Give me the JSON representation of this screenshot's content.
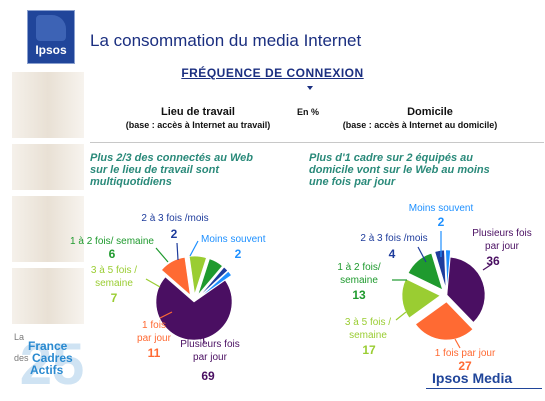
{
  "header": {
    "logo_text": "Ipsos",
    "title": "La consommation du media Internet"
  },
  "section": {
    "title": "FRÉQUENCE DE CONNEXION",
    "unit_label": "En %"
  },
  "columns": [
    {
      "heading": "Lieu de travail",
      "base": "(base : accès à Internet au travail)",
      "note": [
        "Plus 2/3 des connectés au Web",
        "sur le lieu de travail sont",
        "multiquotidiens"
      ]
    },
    {
      "heading": "Domicile",
      "base": "(base : accès à Internet au domicile)",
      "note": [
        "Plus d'1 cadre sur 2 équipés au",
        "domicile vont sur le Web au moins",
        "une fois par jour"
      ]
    }
  ],
  "footer": {
    "brand": "Ipsos Media",
    "side_logo": [
      "La",
      "France",
      "des",
      "Cadres",
      "Actifs"
    ]
  },
  "chart_data": [
    {
      "type": "pie",
      "title": "Lieu de travail",
      "slices": [
        {
          "label": [
            "Plusieurs fois",
            "par jour"
          ],
          "value": 69,
          "color": "#4a0f62"
        },
        {
          "label": [
            "1 fois",
            "par jour"
          ],
          "value": 11,
          "color": "#ff6a33"
        },
        {
          "label": [
            "3 à 5 fois /",
            "semaine"
          ],
          "value": 7,
          "color": "#9acd32"
        },
        {
          "label": [
            "1 à 2 fois/ semaine"
          ],
          "value": 6,
          "color": "#1f9a2e"
        },
        {
          "label": [
            "2 à 3 fois /mois"
          ],
          "value": 2,
          "color": "#1e3c9c"
        },
        {
          "label": [
            "Moins souvent"
          ],
          "value": 2,
          "color": "#1e90ff"
        }
      ]
    },
    {
      "type": "pie",
      "title": "Domicile",
      "slices": [
        {
          "label": [
            "Plusieurs fois",
            "par jour"
          ],
          "value": 36,
          "color": "#4a0f62"
        },
        {
          "label": [
            "1 fois par jour"
          ],
          "value": 27,
          "color": "#ff6a33"
        },
        {
          "label": [
            "3 à 5 fois /",
            "semaine"
          ],
          "value": 17,
          "color": "#9acd32"
        },
        {
          "label": [
            "1 à 2 fois/",
            "semaine"
          ],
          "value": 13,
          "color": "#1f9a2e"
        },
        {
          "label": [
            "2 à 3 fois /mois"
          ],
          "value": 4,
          "color": "#1e3c9c"
        },
        {
          "label": [
            "Moins souvent"
          ],
          "value": 2,
          "color": "#1e90ff"
        }
      ]
    }
  ]
}
